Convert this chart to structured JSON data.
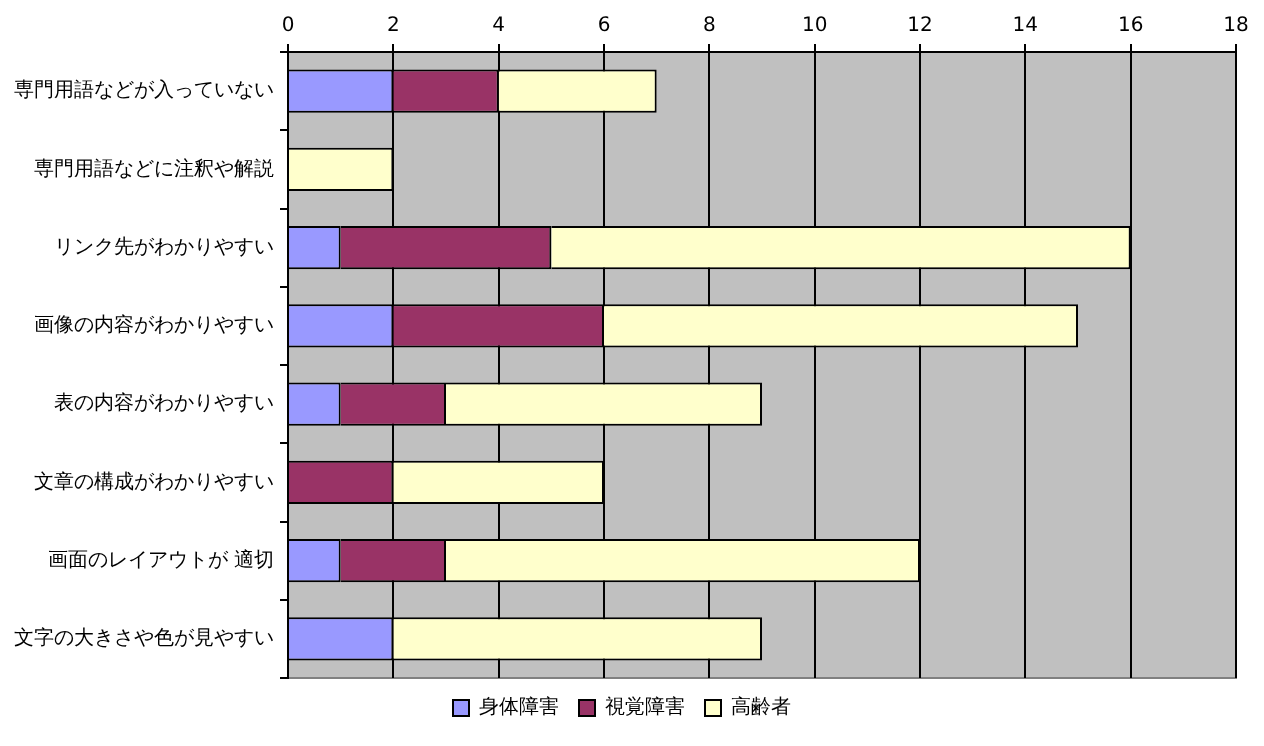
{
  "chart_data": {
    "type": "bar",
    "orientation": "horizontal",
    "stacked": true,
    "categories": [
      "専門用語などが入っていない",
      "専門用語などに注釈や解説",
      "リンク先がわかりやすい",
      "画像の内容がわかりやすい",
      "表の内容がわかりやすい",
      "文章の構成がわかりやすい",
      "画面のレイアウトが 適切",
      "文字の大きさや色が見やすい"
    ],
    "series": [
      {
        "name": "身体障害",
        "color": "#9999ff",
        "values": [
          2,
          0,
          1,
          2,
          1,
          0,
          1,
          2
        ]
      },
      {
        "name": "視覚障害",
        "color": "#993366",
        "values": [
          2,
          0,
          4,
          4,
          2,
          2,
          2,
          0
        ]
      },
      {
        "name": "高齢者",
        "color": "#ffffcc",
        "values": [
          3,
          2,
          11,
          9,
          6,
          4,
          9,
          7
        ]
      }
    ],
    "xlim": [
      0,
      18
    ],
    "xticks": [
      0,
      2,
      4,
      6,
      8,
      10,
      12,
      14,
      16,
      18
    ],
    "grid": "x",
    "legend": "bottom"
  }
}
